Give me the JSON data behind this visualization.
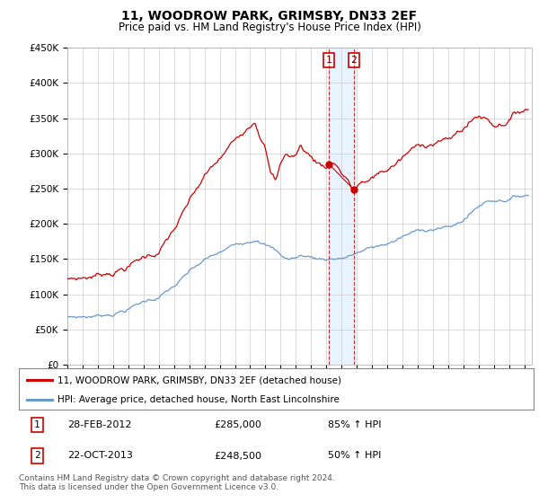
{
  "title": "11, WOODROW PARK, GRIMSBY, DN33 2EF",
  "subtitle": "Price paid vs. HM Land Registry's House Price Index (HPI)",
  "ylabel_ticks": [
    "£0",
    "£50K",
    "£100K",
    "£150K",
    "£200K",
    "£250K",
    "£300K",
    "£350K",
    "£400K",
    "£450K"
  ],
  "ylim": [
    0,
    450000
  ],
  "xlim_start": 1995.0,
  "xlim_end": 2025.5,
  "sale1_date": 2012.16,
  "sale1_price": 285000,
  "sale1_label": "1",
  "sale2_date": 2013.81,
  "sale2_price": 248500,
  "sale2_label": "2",
  "legend_line1": "11, WOODROW PARK, GRIMSBY, DN33 2EF (detached house)",
  "legend_line2": "HPI: Average price, detached house, North East Lincolnshire",
  "line_color_red": "#cc0000",
  "line_color_blue": "#6699cc",
  "shade_color": "#ddeeff",
  "grid_color": "#cccccc",
  "background_color": "#ffffff",
  "hpi_control_points": [
    [
      1995.0,
      62000
    ],
    [
      1996.0,
      63000
    ],
    [
      1997.0,
      65000
    ],
    [
      1998.0,
      70000
    ],
    [
      1999.0,
      78000
    ],
    [
      2000.0,
      88000
    ],
    [
      2001.0,
      96000
    ],
    [
      2002.0,
      110000
    ],
    [
      2003.0,
      128000
    ],
    [
      2004.0,
      143000
    ],
    [
      2005.0,
      152000
    ],
    [
      2006.0,
      162000
    ],
    [
      2007.0,
      172000
    ],
    [
      2007.5,
      178000
    ],
    [
      2008.0,
      172000
    ],
    [
      2008.5,
      165000
    ],
    [
      2009.0,
      155000
    ],
    [
      2009.5,
      150000
    ],
    [
      2010.0,
      152000
    ],
    [
      2010.5,
      155000
    ],
    [
      2011.0,
      153000
    ],
    [
      2011.5,
      151000
    ],
    [
      2012.0,
      152000
    ],
    [
      2012.5,
      153000
    ],
    [
      2013.0,
      155000
    ],
    [
      2013.5,
      157000
    ],
    [
      2014.0,
      162000
    ],
    [
      2014.5,
      165000
    ],
    [
      2015.0,
      168000
    ],
    [
      2015.5,
      170000
    ],
    [
      2016.0,
      174000
    ],
    [
      2016.5,
      178000
    ],
    [
      2017.0,
      183000
    ],
    [
      2017.5,
      187000
    ],
    [
      2018.0,
      190000
    ],
    [
      2018.5,
      193000
    ],
    [
      2019.0,
      196000
    ],
    [
      2019.5,
      198000
    ],
    [
      2020.0,
      197000
    ],
    [
      2020.5,
      200000
    ],
    [
      2021.0,
      208000
    ],
    [
      2021.5,
      218000
    ],
    [
      2022.0,
      228000
    ],
    [
      2022.5,
      235000
    ],
    [
      2023.0,
      238000
    ],
    [
      2023.5,
      240000
    ],
    [
      2024.0,
      242000
    ],
    [
      2024.5,
      245000
    ],
    [
      2025.0,
      248000
    ]
  ],
  "prop_control_points": [
    [
      1995.0,
      112000
    ],
    [
      1996.0,
      115000
    ],
    [
      1997.0,
      120000
    ],
    [
      1998.0,
      128000
    ],
    [
      1999.0,
      138000
    ],
    [
      2000.0,
      150000
    ],
    [
      2001.0,
      160000
    ],
    [
      2002.0,
      190000
    ],
    [
      2003.0,
      225000
    ],
    [
      2004.0,
      258000
    ],
    [
      2005.0,
      280000
    ],
    [
      2006.0,
      305000
    ],
    [
      2007.0,
      335000
    ],
    [
      2007.3,
      345000
    ],
    [
      2007.6,
      330000
    ],
    [
      2008.0,
      310000
    ],
    [
      2008.3,
      275000
    ],
    [
      2008.7,
      260000
    ],
    [
      2009.0,
      285000
    ],
    [
      2009.3,
      300000
    ],
    [
      2009.7,
      295000
    ],
    [
      2010.0,
      298000
    ],
    [
      2010.3,
      310000
    ],
    [
      2010.7,
      302000
    ],
    [
      2011.0,
      295000
    ],
    [
      2011.3,
      290000
    ],
    [
      2011.7,
      285000
    ],
    [
      2012.16,
      285000
    ],
    [
      2012.5,
      292000
    ],
    [
      2012.7,
      288000
    ],
    [
      2013.0,
      278000
    ],
    [
      2013.3,
      272000
    ],
    [
      2013.81,
      248500
    ],
    [
      2014.0,
      258000
    ],
    [
      2014.3,
      265000
    ],
    [
      2014.7,
      260000
    ],
    [
      2015.0,
      268000
    ],
    [
      2015.5,
      275000
    ],
    [
      2016.0,
      280000
    ],
    [
      2016.5,
      288000
    ],
    [
      2017.0,
      296000
    ],
    [
      2017.5,
      305000
    ],
    [
      2018.0,
      310000
    ],
    [
      2018.5,
      315000
    ],
    [
      2019.0,
      320000
    ],
    [
      2019.5,
      325000
    ],
    [
      2020.0,
      322000
    ],
    [
      2020.5,
      330000
    ],
    [
      2021.0,
      340000
    ],
    [
      2021.5,
      350000
    ],
    [
      2022.0,
      358000
    ],
    [
      2022.5,
      355000
    ],
    [
      2023.0,
      348000
    ],
    [
      2023.5,
      352000
    ],
    [
      2024.0,
      360000
    ],
    [
      2024.5,
      368000
    ],
    [
      2025.0,
      375000
    ]
  ],
  "footnote": "Contains HM Land Registry data © Crown copyright and database right 2024.\nThis data is licensed under the Open Government Licence v3.0."
}
